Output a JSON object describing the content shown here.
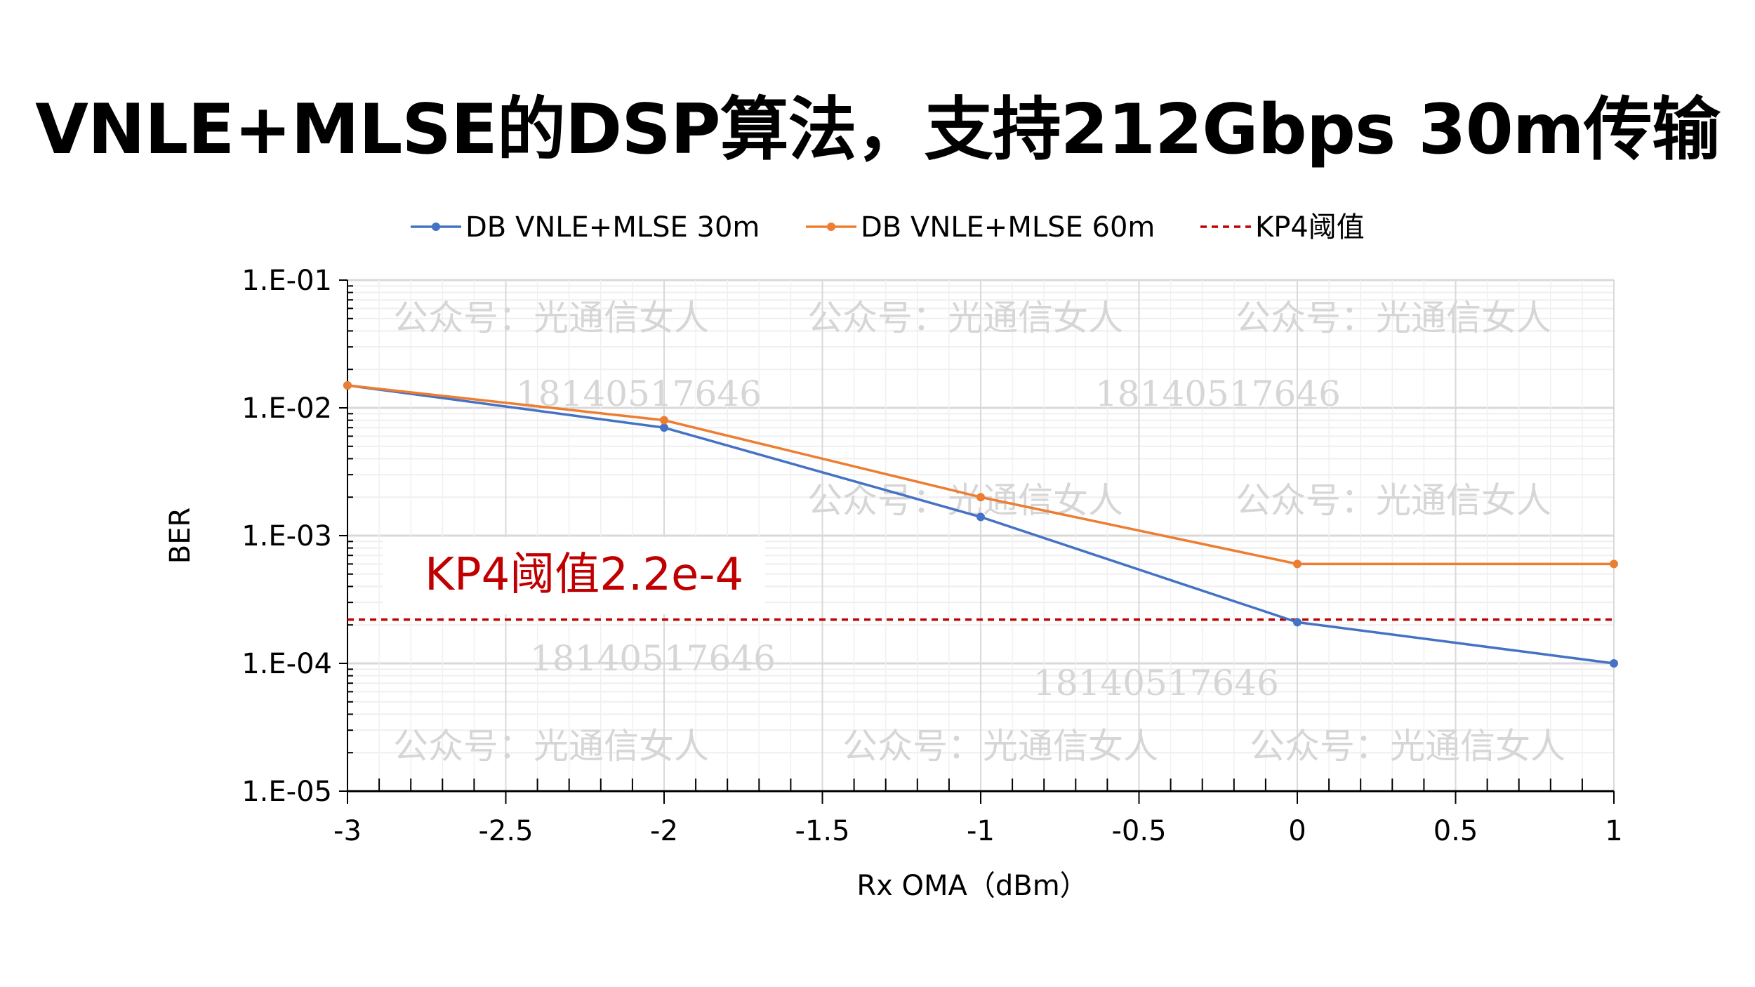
{
  "title": "VNLE+MLSE的DSP算法，支持212Gbps 30m传输",
  "chart_data": {
    "type": "line",
    "title": "VNLE+MLSE的DSP算法，支持212Gbps 30m传输",
    "xlabel": "Rx OMA（dBm）",
    "ylabel": "BER",
    "yscale": "log",
    "xlim": [
      -3,
      1
    ],
    "ylim": [
      1e-05,
      0.1
    ],
    "x_ticks": [
      "-3",
      "-2.5",
      "-2",
      "-1.5",
      "-1",
      "-0.5",
      "0",
      "0.5",
      "1"
    ],
    "y_ticks": [
      "1.E-01",
      "1.E-02",
      "1.E-03",
      "1.E-04",
      "1.E-05"
    ],
    "grid": true,
    "legend_position": "top",
    "x": [
      -3,
      -2,
      -1,
      0,
      1
    ],
    "series": [
      {
        "name": "DB VNLE+MLSE 30m",
        "color": "#4472c4",
        "values": [
          0.015,
          0.007,
          0.0014,
          0.00021,
          0.0001
        ]
      },
      {
        "name": "DB VNLE+MLSE 60m",
        "color": "#ed7d31",
        "values": [
          0.015,
          0.008,
          0.002,
          0.0006,
          0.0006
        ]
      }
    ],
    "threshold": {
      "name": "KP4阈值",
      "value": 0.00022,
      "color": "#c00000"
    },
    "annotation": {
      "text": "KP4阈值2.2e-4",
      "color": "#c00000"
    }
  },
  "watermarks": {
    "account": "公众号：光通信女人",
    "phone": "18140517646"
  }
}
